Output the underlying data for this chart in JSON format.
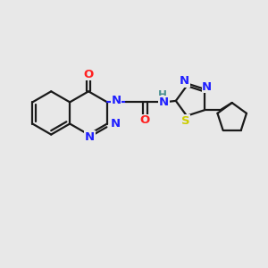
{
  "bg_color": "#e8e8e8",
  "bond_color": "#1a1a1a",
  "bond_width": 1.6,
  "atom_colors": {
    "N": "#2020ff",
    "O": "#ff2020",
    "S": "#cccc00",
    "H": "#4a9090",
    "C": "#1a1a1a"
  },
  "font_size": 9.5,
  "xlim": [
    0,
    10
  ],
  "ylim": [
    0,
    10
  ]
}
